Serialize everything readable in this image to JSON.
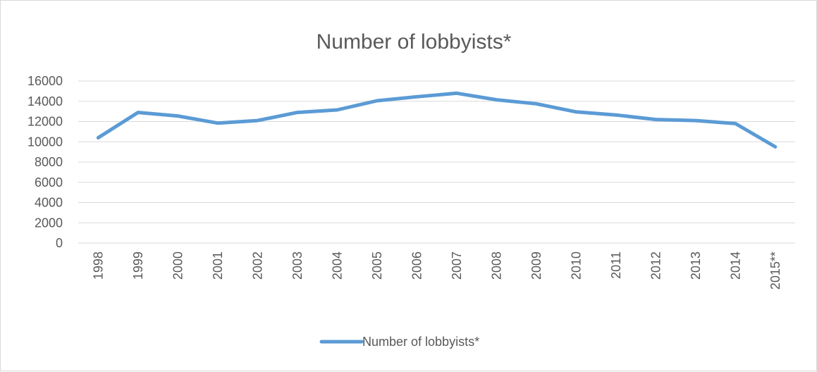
{
  "chart_data": {
    "type": "line",
    "title": "Number of lobbyists*",
    "xlabel": "",
    "ylabel": "",
    "x": [
      "1998",
      "1999",
      "2000",
      "2001",
      "2002",
      "2003",
      "2004",
      "2005",
      "2006",
      "2007",
      "2008",
      "2009",
      "2010",
      "2011",
      "2012",
      "2013",
      "2014",
      "2015**"
    ],
    "series": [
      {
        "name": "Number of lobbyists*",
        "values": [
          10400,
          12900,
          12550,
          11850,
          12100,
          12900,
          13150,
          14050,
          14450,
          14800,
          14150,
          13750,
          12950,
          12650,
          12200,
          12100,
          11800,
          9500
        ]
      }
    ],
    "y_ticks": [
      "0",
      "2000",
      "4000",
      "6000",
      "8000",
      "10000",
      "12000",
      "14000",
      "16000"
    ],
    "ylim": [
      0,
      16000
    ],
    "grid": true,
    "legend_position": "bottom",
    "colors": {
      "series": "#5b9bd5",
      "grid": "#d9d9d9",
      "text": "#595959"
    }
  }
}
